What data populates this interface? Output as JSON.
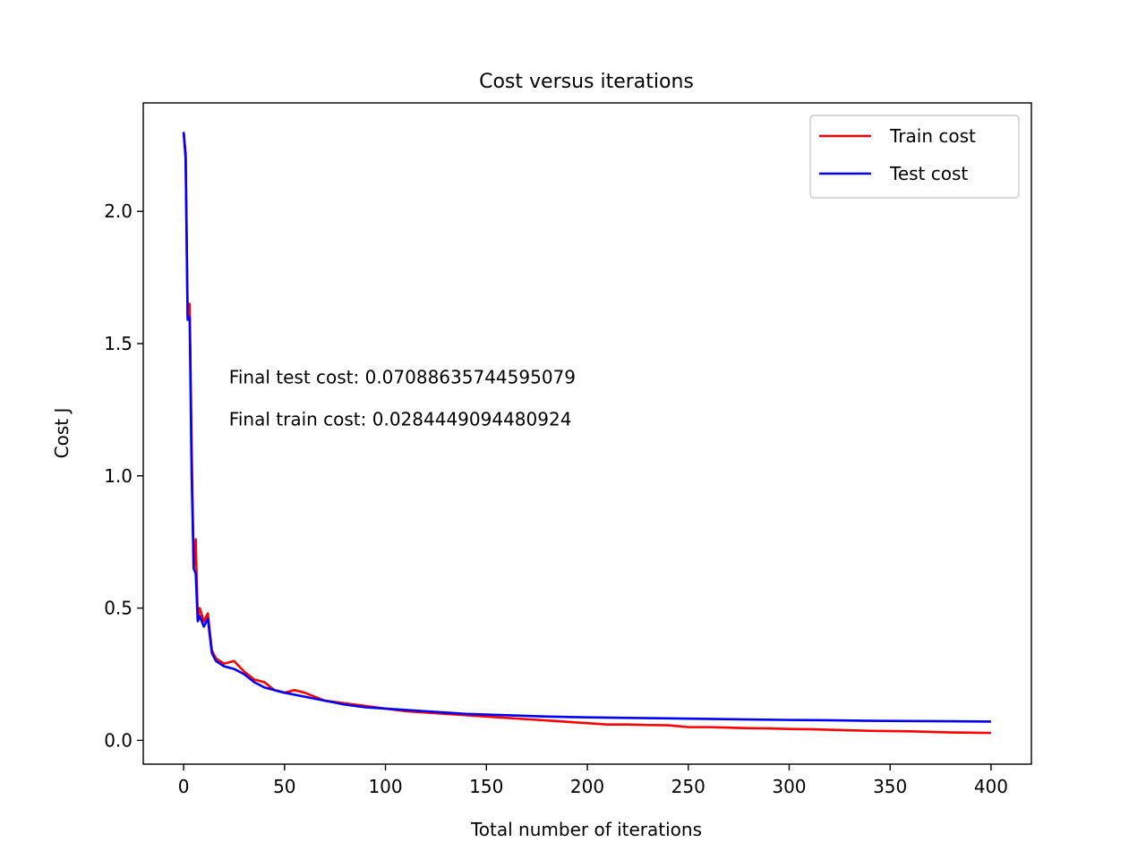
{
  "chart_data": {
    "type": "line",
    "title": "Cost versus iterations",
    "xlabel": "Total number of iterations",
    "ylabel": "Cost J",
    "xlim": [
      -20,
      420
    ],
    "ylim": [
      -0.09,
      2.41
    ],
    "xticks": [
      0,
      50,
      100,
      150,
      200,
      250,
      300,
      350,
      400
    ],
    "xtick_labels": [
      "0",
      "50",
      "100",
      "150",
      "200",
      "250",
      "300",
      "350",
      "400"
    ],
    "yticks": [
      0.0,
      0.5,
      1.0,
      1.5,
      2.0
    ],
    "ytick_labels": [
      "0.0",
      "0.5",
      "1.0",
      "1.5",
      "2.0"
    ],
    "grid": false,
    "legend_position": "upper right",
    "annotations": [
      {
        "text": "Final test cost: 0.07088635744595079",
        "x": 22.5,
        "y": 1.35
      },
      {
        "text": "Final train cost: 0.0284449094480924",
        "x": 22.5,
        "y": 1.19
      }
    ],
    "series": [
      {
        "name": "Train cost",
        "color": "#ff0000",
        "x": [
          0,
          1,
          2,
          3,
          4,
          5,
          6,
          7,
          8,
          10,
          12,
          14,
          16,
          20,
          25,
          30,
          35,
          40,
          45,
          50,
          55,
          60,
          70,
          80,
          90,
          100,
          110,
          120,
          130,
          140,
          150,
          160,
          170,
          180,
          190,
          200,
          210,
          220,
          230,
          240,
          250,
          260,
          270,
          280,
          290,
          300,
          310,
          320,
          330,
          340,
          350,
          360,
          370,
          380,
          390,
          400
        ],
        "y": [
          2.3,
          2.22,
          1.6,
          1.65,
          1.1,
          0.65,
          0.76,
          0.46,
          0.5,
          0.45,
          0.48,
          0.34,
          0.31,
          0.29,
          0.3,
          0.26,
          0.23,
          0.22,
          0.19,
          0.18,
          0.19,
          0.18,
          0.15,
          0.14,
          0.13,
          0.12,
          0.11,
          0.105,
          0.1,
          0.095,
          0.09,
          0.085,
          0.08,
          0.075,
          0.07,
          0.065,
          0.06,
          0.06,
          0.058,
          0.057,
          0.05,
          0.05,
          0.048,
          0.046,
          0.045,
          0.043,
          0.042,
          0.04,
          0.038,
          0.036,
          0.035,
          0.034,
          0.032,
          0.03,
          0.029,
          0.028
        ]
      },
      {
        "name": "Test cost",
        "color": "#0000ff",
        "x": [
          0,
          1,
          2,
          3,
          4,
          5,
          6,
          7,
          8,
          10,
          12,
          14,
          16,
          20,
          25,
          30,
          35,
          40,
          50,
          60,
          70,
          80,
          90,
          100,
          120,
          140,
          160,
          180,
          200,
          220,
          240,
          260,
          280,
          300,
          320,
          340,
          360,
          380,
          400
        ],
        "y": [
          2.3,
          2.2,
          1.59,
          1.6,
          1.0,
          0.65,
          0.63,
          0.45,
          0.47,
          0.43,
          0.46,
          0.33,
          0.3,
          0.28,
          0.27,
          0.25,
          0.22,
          0.2,
          0.18,
          0.165,
          0.15,
          0.135,
          0.125,
          0.12,
          0.11,
          0.1,
          0.095,
          0.09,
          0.087,
          0.085,
          0.083,
          0.081,
          0.079,
          0.077,
          0.076,
          0.074,
          0.073,
          0.072,
          0.0709
        ]
      }
    ]
  }
}
